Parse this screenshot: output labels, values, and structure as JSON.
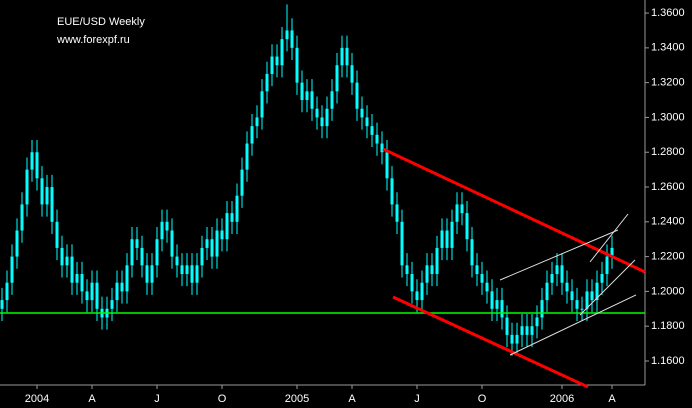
{
  "chart_data": {
    "type": "candlestick",
    "title": "EUE/USD Weekly",
    "subtitle": "www.forexpf.ru",
    "color": "#00ffff",
    "categories": [
      null,
      null,
      null,
      null,
      null,
      null,
      null,
      "2004",
      null,
      null,
      null,
      null,
      null,
      null,
      null,
      null,
      null,
      null,
      "A",
      null,
      null,
      null,
      null,
      null,
      null,
      null,
      null,
      null,
      null,
      null,
      null,
      "J",
      null,
      null,
      null,
      null,
      null,
      null,
      null,
      null,
      null,
      null,
      null,
      null,
      "O",
      null,
      null,
      null,
      null,
      null,
      null,
      null,
      null,
      null,
      null,
      null,
      null,
      null,
      null,
      "2005",
      null,
      null,
      null,
      null,
      null,
      null,
      null,
      null,
      null,
      null,
      "A",
      null,
      null,
      null,
      null,
      null,
      null,
      null,
      null,
      null,
      null,
      null,
      null,
      "J",
      null,
      null,
      null,
      null,
      null,
      null,
      null,
      null,
      null,
      null,
      null,
      null,
      "O",
      null,
      null,
      null,
      null,
      null,
      null,
      null,
      null,
      null,
      null,
      null,
      null,
      null,
      null,
      null,
      "2006",
      null,
      null,
      null,
      null,
      null,
      null,
      null,
      null,
      null,
      "A"
    ],
    "open": [
      1.19,
      1.195,
      1.205,
      1.22,
      1.235,
      1.25,
      1.27,
      1.28,
      1.265,
      1.25,
      1.26,
      1.24,
      1.225,
      1.215,
      1.22,
      1.205,
      1.21,
      1.2,
      1.195,
      1.205,
      1.19,
      1.185,
      1.19,
      1.195,
      1.205,
      1.2,
      1.215,
      1.23,
      1.225,
      1.215,
      1.205,
      1.215,
      1.23,
      1.24,
      1.235,
      1.22,
      1.215,
      1.21,
      1.215,
      1.205,
      1.215,
      1.225,
      1.23,
      1.22,
      1.235,
      1.23,
      1.245,
      1.24,
      1.255,
      1.27,
      1.285,
      1.295,
      1.3,
      1.315,
      1.325,
      1.335,
      1.33,
      1.345,
      1.35,
      1.34,
      1.32,
      1.31,
      1.315,
      1.305,
      1.3,
      1.295,
      1.305,
      1.315,
      1.33,
      1.34,
      1.33,
      1.32,
      1.305,
      1.3,
      1.295,
      1.29,
      1.285,
      1.28,
      1.265,
      1.25,
      1.24,
      1.215,
      1.21,
      1.2,
      1.195,
      1.205,
      1.215,
      1.21,
      1.225,
      1.235,
      1.225,
      1.24,
      1.25,
      1.245,
      1.23,
      1.215,
      1.21,
      1.205,
      1.2,
      1.19,
      1.195,
      1.185,
      1.175,
      1.17,
      1.175,
      1.18,
      1.175,
      1.18,
      1.185,
      1.195,
      1.205,
      1.21,
      1.215,
      1.205,
      1.2,
      1.195,
      1.19,
      1.19,
      1.2,
      1.195,
      1.205,
      1.21,
      1.22
    ],
    "high": [
      1.202,
      1.212,
      1.227,
      1.242,
      1.257,
      1.277,
      1.287,
      1.287,
      1.272,
      1.267,
      1.267,
      1.247,
      1.232,
      1.227,
      1.227,
      1.217,
      1.217,
      1.207,
      1.212,
      1.212,
      1.197,
      1.197,
      1.202,
      1.212,
      1.212,
      1.222,
      1.237,
      1.237,
      1.232,
      1.222,
      1.222,
      1.237,
      1.247,
      1.247,
      1.242,
      1.227,
      1.222,
      1.222,
      1.222,
      1.222,
      1.232,
      1.237,
      1.237,
      1.242,
      1.242,
      1.252,
      1.252,
      1.262,
      1.277,
      1.292,
      1.302,
      1.307,
      1.322,
      1.332,
      1.342,
      1.342,
      1.352,
      1.365,
      1.357,
      1.347,
      1.327,
      1.322,
      1.322,
      1.312,
      1.307,
      1.312,
      1.322,
      1.337,
      1.347,
      1.347,
      1.337,
      1.327,
      1.312,
      1.307,
      1.302,
      1.297,
      1.292,
      1.287,
      1.272,
      1.257,
      1.247,
      1.222,
      1.217,
      1.207,
      1.212,
      1.222,
      1.222,
      1.232,
      1.242,
      1.242,
      1.247,
      1.257,
      1.257,
      1.252,
      1.237,
      1.222,
      1.217,
      1.212,
      1.207,
      1.202,
      1.202,
      1.192,
      1.182,
      1.182,
      1.187,
      1.187,
      1.187,
      1.192,
      1.202,
      1.212,
      1.217,
      1.222,
      1.222,
      1.212,
      1.207,
      1.202,
      1.197,
      1.207,
      1.207,
      1.212,
      1.217,
      1.227,
      1.232
    ],
    "low": [
      1.183,
      1.188,
      1.198,
      1.213,
      1.228,
      1.243,
      1.263,
      1.258,
      1.243,
      1.243,
      1.233,
      1.218,
      1.208,
      1.208,
      1.198,
      1.198,
      1.193,
      1.188,
      1.188,
      1.183,
      1.178,
      1.178,
      1.183,
      1.188,
      1.193,
      1.193,
      1.208,
      1.218,
      1.208,
      1.198,
      1.198,
      1.208,
      1.223,
      1.228,
      1.213,
      1.208,
      1.203,
      1.203,
      1.198,
      1.198,
      1.208,
      1.218,
      1.213,
      1.213,
      1.223,
      1.223,
      1.233,
      1.233,
      1.248,
      1.263,
      1.278,
      1.288,
      1.293,
      1.308,
      1.318,
      1.323,
      1.323,
      1.338,
      1.333,
      1.313,
      1.303,
      1.303,
      1.298,
      1.293,
      1.288,
      1.288,
      1.298,
      1.308,
      1.323,
      1.323,
      1.313,
      1.298,
      1.293,
      1.288,
      1.283,
      1.278,
      1.273,
      1.258,
      1.243,
      1.233,
      1.208,
      1.203,
      1.193,
      1.188,
      1.188,
      1.198,
      1.203,
      1.203,
      1.218,
      1.218,
      1.218,
      1.233,
      1.238,
      1.223,
      1.208,
      1.203,
      1.198,
      1.193,
      1.183,
      1.183,
      1.178,
      1.168,
      1.163,
      1.163,
      1.168,
      1.168,
      1.168,
      1.173,
      1.178,
      1.188,
      1.198,
      1.203,
      1.198,
      1.193,
      1.188,
      1.183,
      1.183,
      1.183,
      1.188,
      1.188,
      1.198,
      1.203,
      1.213
    ],
    "close": [
      1.195,
      1.205,
      1.22,
      1.235,
      1.25,
      1.27,
      1.28,
      1.265,
      1.25,
      1.26,
      1.24,
      1.225,
      1.215,
      1.22,
      1.205,
      1.21,
      1.2,
      1.195,
      1.205,
      1.19,
      1.185,
      1.19,
      1.195,
      1.205,
      1.2,
      1.215,
      1.23,
      1.225,
      1.215,
      1.205,
      1.215,
      1.23,
      1.24,
      1.235,
      1.22,
      1.215,
      1.21,
      1.215,
      1.205,
      1.215,
      1.225,
      1.23,
      1.22,
      1.235,
      1.23,
      1.245,
      1.24,
      1.255,
      1.27,
      1.285,
      1.295,
      1.3,
      1.315,
      1.325,
      1.335,
      1.33,
      1.345,
      1.35,
      1.34,
      1.32,
      1.31,
      1.315,
      1.305,
      1.3,
      1.295,
      1.305,
      1.315,
      1.33,
      1.34,
      1.33,
      1.32,
      1.305,
      1.3,
      1.295,
      1.29,
      1.285,
      1.28,
      1.265,
      1.25,
      1.24,
      1.215,
      1.21,
      1.2,
      1.195,
      1.205,
      1.215,
      1.21,
      1.225,
      1.235,
      1.225,
      1.24,
      1.25,
      1.245,
      1.23,
      1.215,
      1.21,
      1.205,
      1.2,
      1.19,
      1.195,
      1.185,
      1.175,
      1.17,
      1.175,
      1.18,
      1.175,
      1.18,
      1.185,
      1.195,
      1.205,
      1.21,
      1.215,
      1.205,
      1.2,
      1.195,
      1.19,
      1.19,
      1.2,
      1.195,
      1.205,
      1.21,
      1.22,
      1.225
    ],
    "ylim": [
      1.1462,
      1.3675
    ],
    "yticks": [
      {
        "value": 1.16,
        "label": "1.1600"
      },
      {
        "value": 1.18,
        "label": "1.1800"
      },
      {
        "value": 1.2,
        "label": "1.2000"
      },
      {
        "value": 1.22,
        "label": "1.2200"
      },
      {
        "value": 1.24,
        "label": "1.2400"
      },
      {
        "value": 1.26,
        "label": "1.2600"
      },
      {
        "value": 1.28,
        "label": "1.2800"
      },
      {
        "value": 1.3,
        "label": "1.3000"
      },
      {
        "value": 1.32,
        "label": "1.3200"
      },
      {
        "value": 1.34,
        "label": "1.3400"
      },
      {
        "value": 1.36,
        "label": "1.3600"
      }
    ]
  }
}
